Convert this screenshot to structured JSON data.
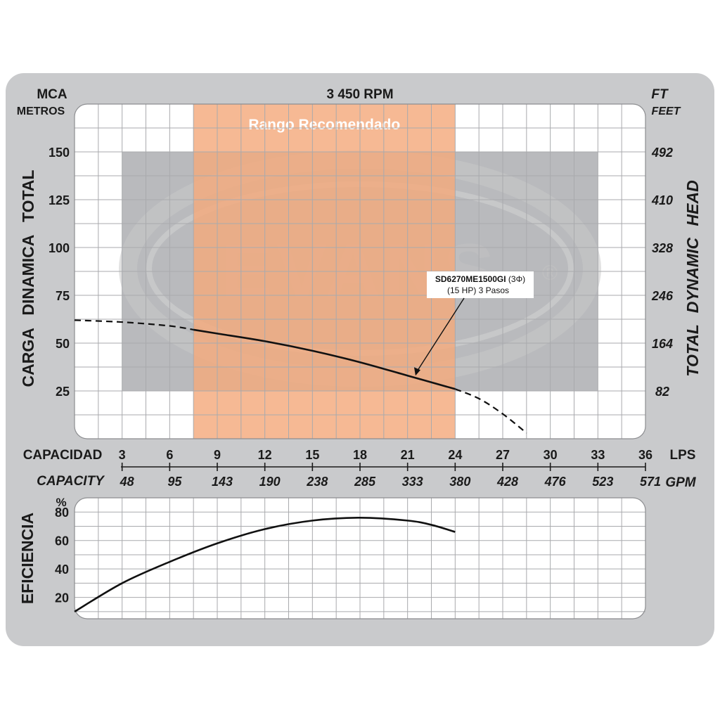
{
  "chart_data": [
    {
      "type": "line",
      "title": "3 450 RPM",
      "ylabel_left": "CARGA DINAMICA TOTAL",
      "ylabel_left_unit_top": "MCA",
      "ylabel_left_unit_bottom": "METROS",
      "ylabel_right": "TOTAL DYNAMIC HEAD",
      "ylabel_right_unit_top": "FT",
      "ylabel_right_unit_bottom": "FEET",
      "xlabel": "CAPACIDAD",
      "xlabel_unit": "LPS",
      "xlabel_secondary": "CAPACITY",
      "xlabel_secondary_unit": "GPM",
      "xlim": [
        0,
        36
      ],
      "ylim": [
        0,
        175
      ],
      "x_ticks": [
        3,
        6,
        9,
        12,
        15,
        18,
        21,
        24,
        27,
        30,
        33,
        36
      ],
      "x_tick_labels": [
        "3",
        "6",
        "9",
        "12",
        "15",
        "18",
        "21",
        "24",
        "27",
        "30",
        "33",
        "36"
      ],
      "x_secondary_tick_labels": [
        "48",
        "95",
        "143",
        "190",
        "238",
        "285",
        "333",
        "380",
        "428",
        "476",
        "523",
        "571"
      ],
      "y_ticks": [
        25,
        50,
        75,
        100,
        125,
        150
      ],
      "y_tick_labels": [
        "25",
        "50",
        "75",
        "100",
        "125",
        "150"
      ],
      "y_right_tick_labels": [
        "82",
        "164",
        "246",
        "328",
        "410",
        "492"
      ],
      "grid": true,
      "recommended_range": {
        "label": "Rango Recomendado",
        "x": [
          7.5,
          24
        ],
        "color": "#f4a97c"
      },
      "operating_zone": {
        "x": [
          3,
          33
        ],
        "y": [
          25,
          150
        ],
        "color": "#b9babd"
      },
      "watermark": "EVANS",
      "annotation": {
        "model": "SD6270ME1500GI",
        "phase": "(3Φ)",
        "detail": "(15 HP) 3 Pasos",
        "x": 21.5,
        "y": 33
      },
      "series": [
        {
          "name": "SD6270ME1500GI",
          "x": [
            0,
            3,
            6,
            7.5,
            9,
            12,
            15,
            18,
            21,
            24
          ],
          "y": [
            62,
            61,
            59,
            57,
            55,
            51,
            46,
            40,
            33,
            26
          ],
          "style": "solid",
          "extrapolated": {
            "x_before": [
              0,
              3,
              6,
              7.5
            ],
            "x_after": [
              24,
              25.5,
              27,
              28.5
            ],
            "y_after": [
              26,
              21,
              13,
              3
            ]
          }
        }
      ]
    },
    {
      "type": "line",
      "ylabel": "EFICIENCIA",
      "yunit": "%",
      "xlim": [
        0,
        36
      ],
      "ylim": [
        5,
        90
      ],
      "y_ticks": [
        20,
        40,
        60,
        80
      ],
      "y_tick_labels": [
        "20",
        "40",
        "60",
        "80"
      ],
      "grid": true,
      "series": [
        {
          "name": "Eficiencia",
          "x": [
            0,
            3,
            6,
            9,
            12,
            15,
            18,
            21,
            22.5,
            24
          ],
          "y": [
            10,
            30,
            45,
            58,
            68,
            74,
            76,
            74,
            71,
            66
          ]
        }
      ]
    }
  ],
  "colors": {
    "frame": "#c9cacc",
    "panel": "#ffffff",
    "grid": "#a9aaad",
    "recommended": "#f4a97c",
    "zone": "#b9babd",
    "curve": "#111111"
  }
}
